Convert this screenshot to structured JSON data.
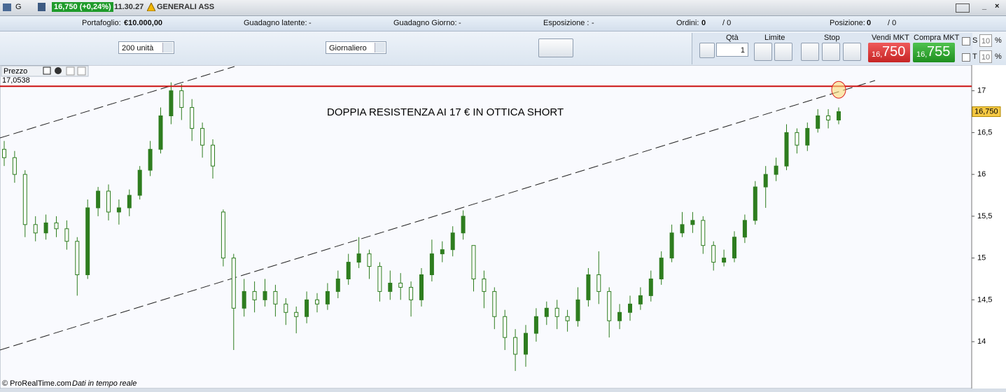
{
  "toolbar": {
    "symbol_menu": "G",
    "quote": "16,750 (+0,24%)",
    "time": "11.30.27",
    "instrument": "GENERALI ASS"
  },
  "account": {
    "portfolio_label": "Portafoglio:",
    "portfolio_value": "€10.000,00",
    "latent_label": "Guadagno latente:",
    "latent_value": "-",
    "day_label": "Guadagno Giorno:",
    "day_value": "-",
    "exposure_label": "Esposizione :",
    "exposure_value": "-",
    "orders_label": "Ordini:",
    "orders_value": "0",
    "orders_total": "/ 0",
    "position_label": "Posizione:",
    "position_value": "0",
    "position_total": "/ 0"
  },
  "controls": {
    "quantity_select": "200 unità",
    "period_select": "Giornaliero"
  },
  "order_panel": {
    "qty_label": "Qtà",
    "qty_value": "1",
    "limit_label": "Limite",
    "stop_label": "Stop",
    "sell_label": "Vendi MKT",
    "sell_prefix": "16,",
    "sell_main": "750",
    "buy_label": "Compra MKT",
    "buy_prefix": "16,",
    "buy_main": "755",
    "s_label": "S",
    "s_value": "10",
    "s_unit": "%",
    "t_label": "T",
    "t_value": "10",
    "t_unit": "%"
  },
  "chart_header": {
    "title": "Prezzo"
  },
  "footer": {
    "copyright": "© ProRealTime.com",
    "status": "Dati in tempo reale"
  },
  "chart_data": {
    "type": "candlestick",
    "annotation": "DOPPIA RESISTENZA AI 17 € IN OTTICA SHORT",
    "color": "#2e7d1f",
    "resistance_line": {
      "value": 17.0538,
      "label": "17,0538"
    },
    "last_price": {
      "value": 16.75,
      "label": "16,750"
    },
    "ylim": [
      13.44,
      17.29
    ],
    "yticks": [
      14,
      {
        "value": 14.5,
        "label": "14,5"
      },
      15,
      {
        "value": 15.5,
        "label": "15,5"
      },
      16,
      {
        "value": 16.5,
        "label": "16,5"
      },
      17
    ],
    "open": [
      16.3,
      16.2,
      16.0,
      15.4,
      15.3,
      15.42,
      15.35,
      15.2,
      14.8,
      15.6,
      15.8,
      15.55,
      15.6,
      15.75,
      16.05,
      16.3,
      16.7,
      17.0,
      16.8,
      16.55,
      16.35,
      15.55,
      15.0,
      14.4,
      14.6,
      14.5,
      14.6,
      14.45,
      14.35,
      14.3,
      14.5,
      14.45,
      14.6,
      14.75,
      14.95,
      15.05,
      14.9,
      14.6,
      14.7,
      14.65,
      14.5,
      14.8,
      15.05,
      15.1,
      15.3,
      15.15,
      14.75,
      14.6,
      14.3,
      14.05,
      13.85,
      14.1,
      14.3,
      14.4,
      14.3,
      14.25,
      14.5,
      14.8,
      14.6,
      14.25,
      14.35,
      14.45,
      14.55,
      14.75,
      15.0,
      15.3,
      15.4,
      15.45,
      15.15,
      14.95,
      15.0,
      15.25,
      15.45,
      15.85,
      16.0,
      16.1,
      16.5,
      16.35,
      16.55,
      16.7,
      16.65
    ],
    "high": [
      16.4,
      16.28,
      16.05,
      15.5,
      15.52,
      15.5,
      15.45,
      15.25,
      15.7,
      15.85,
      15.88,
      15.7,
      15.82,
      16.1,
      16.4,
      16.8,
      17.1,
      17.08,
      16.9,
      16.62,
      16.42,
      15.58,
      15.05,
      14.75,
      14.72,
      14.75,
      14.68,
      14.52,
      14.42,
      14.6,
      14.58,
      14.7,
      14.85,
      15.05,
      15.25,
      15.1,
      14.95,
      14.85,
      14.82,
      14.72,
      14.88,
      15.22,
      15.2,
      15.38,
      15.57,
      15.15,
      14.85,
      14.65,
      14.38,
      14.15,
      14.2,
      14.4,
      14.48,
      14.5,
      14.38,
      14.65,
      14.88,
      15.08,
      14.65,
      14.45,
      14.55,
      14.65,
      14.85,
      15.08,
      15.4,
      15.55,
      15.55,
      15.5,
      15.2,
      15.1,
      15.32,
      15.52,
      15.92,
      16.1,
      16.2,
      16.6,
      16.55,
      16.62,
      16.78,
      16.78,
      16.8
    ],
    "low": [
      16.1,
      15.9,
      15.25,
      15.2,
      15.22,
      15.25,
      15.1,
      14.55,
      14.75,
      15.5,
      15.45,
      15.4,
      15.5,
      15.7,
      15.98,
      16.25,
      16.6,
      16.65,
      16.4,
      16.2,
      15.95,
      14.9,
      13.9,
      14.3,
      14.35,
      14.42,
      14.3,
      14.2,
      14.1,
      14.22,
      14.35,
      14.38,
      14.52,
      14.68,
      14.88,
      14.75,
      14.48,
      14.5,
      14.5,
      14.3,
      14.42,
      14.72,
      14.95,
      15.02,
      15.22,
      14.6,
      14.4,
      14.15,
      13.9,
      13.65,
      13.7,
      14.0,
      14.2,
      14.15,
      14.12,
      14.18,
      14.42,
      14.45,
      14.05,
      14.15,
      14.25,
      14.38,
      14.48,
      14.68,
      14.95,
      15.25,
      15.3,
      15.05,
      14.85,
      14.9,
      14.95,
      15.18,
      15.4,
      15.6,
      15.92,
      16.05,
      16.25,
      16.28,
      16.5,
      16.55,
      16.6
    ],
    "close": [
      16.2,
      16.0,
      15.4,
      15.3,
      15.42,
      15.35,
      15.2,
      14.8,
      15.6,
      15.8,
      15.55,
      15.6,
      15.75,
      16.05,
      16.3,
      16.7,
      17.0,
      16.8,
      16.55,
      16.35,
      16.1,
      15.0,
      14.4,
      14.6,
      14.5,
      14.6,
      14.45,
      14.35,
      14.3,
      14.5,
      14.45,
      14.6,
      14.75,
      14.95,
      15.05,
      14.9,
      14.6,
      14.7,
      14.65,
      14.5,
      14.8,
      15.05,
      15.1,
      15.3,
      15.5,
      14.75,
      14.6,
      14.3,
      14.05,
      13.85,
      14.1,
      14.3,
      14.4,
      14.3,
      14.25,
      14.5,
      14.8,
      14.6,
      14.25,
      14.35,
      14.45,
      14.55,
      14.75,
      15.0,
      15.3,
      15.4,
      15.45,
      15.15,
      14.95,
      15.0,
      15.25,
      15.45,
      15.85,
      16.0,
      16.1,
      16.5,
      16.35,
      16.55,
      16.7,
      16.65,
      16.75
    ]
  }
}
